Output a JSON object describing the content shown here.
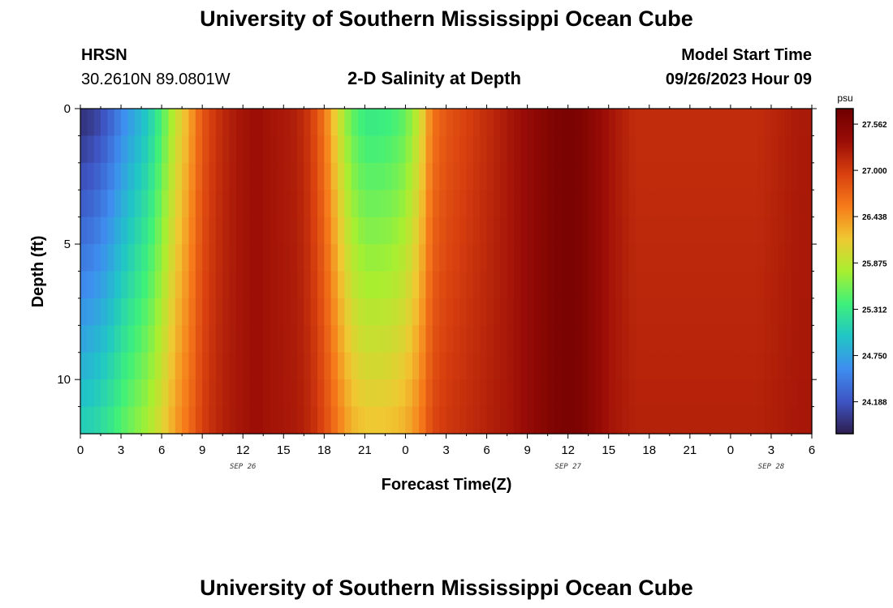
{
  "header": {
    "title": "University of Southern Mississippi Ocean Cube",
    "station": "HRSN",
    "coords": "30.2610N  89.0801W",
    "chart_title": "2-D Salinity at Depth",
    "model_label": "Model Start Time",
    "model_time": "09/26/2023 Hour 09"
  },
  "footer": {
    "title": "University of Southern Mississippi Ocean Cube"
  },
  "colors": {
    "scale": [
      "#2d1e4f",
      "#3e55c4",
      "#3e8ef0",
      "#20c6c6",
      "#3ef07a",
      "#a8ef30",
      "#f0c832",
      "#f67a1a",
      "#d8400f",
      "#9a0c06",
      "#6e0000"
    ]
  },
  "chart_data": {
    "type": "heatmap",
    "title": "2-D Salinity at Depth",
    "xlabel": "Forecast Time(Z)",
    "ylabel": "Depth (ft)",
    "x_tick_labels": [
      "0",
      "3",
      "6",
      "9",
      "12",
      "15",
      "18",
      "21",
      "0",
      "3",
      "6",
      "9",
      "12",
      "15",
      "18",
      "21",
      "0",
      "3",
      "6"
    ],
    "x_range_hours": [
      0,
      54
    ],
    "x_date_labels": [
      {
        "label": "SEP 26",
        "hour": 12
      },
      {
        "label": "SEP 27",
        "hour": 36
      },
      {
        "label": "SEP 28",
        "hour": 51
      }
    ],
    "y_tick_labels": [
      "0",
      "5",
      "10"
    ],
    "y_range_ft": [
      0,
      12
    ],
    "units": "psu",
    "colorbar_labels": [
      "27.562",
      "27.000",
      "26.438",
      "25.875",
      "25.312",
      "24.750",
      "24.188"
    ],
    "value_range": [
      23.8,
      27.75
    ],
    "surface_salinity_by_hour": [
      23.9,
      24.0,
      24.2,
      24.5,
      24.75,
      25.0,
      25.4,
      25.9,
      26.3,
      26.8,
      27.05,
      27.2,
      27.3,
      27.35,
      27.3,
      27.25,
      27.2,
      27.0,
      26.6,
      26.0,
      25.5,
      25.3,
      25.3,
      25.35,
      25.5,
      25.9,
      26.6,
      26.8,
      26.9,
      27.0,
      27.1,
      27.2,
      27.3,
      27.4,
      27.5,
      27.6,
      27.65,
      27.6,
      27.45,
      27.3,
      27.2,
      27.1,
      27.1,
      27.1,
      27.1,
      27.1,
      27.1,
      27.1,
      27.1,
      27.1,
      27.1,
      27.15,
      27.2,
      27.25,
      27.25
    ]
  }
}
